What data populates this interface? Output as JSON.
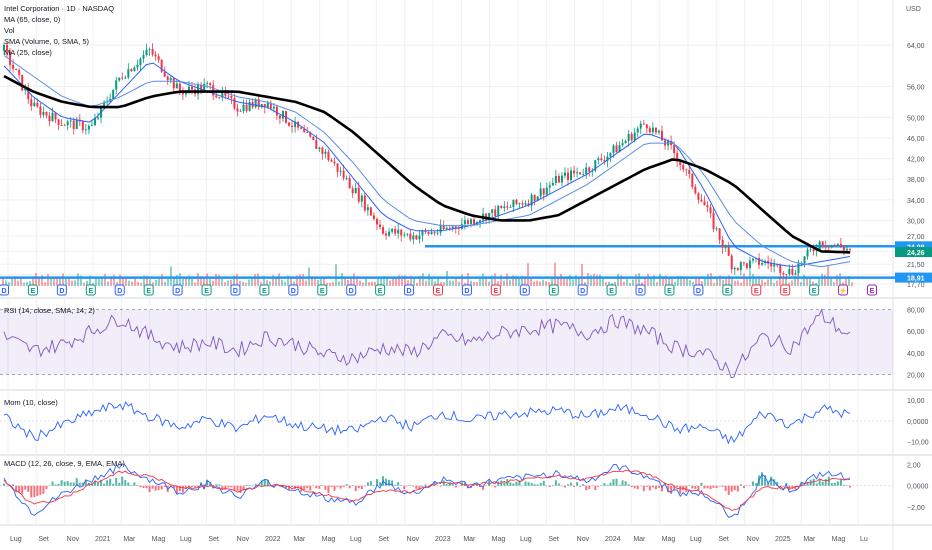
{
  "header": {
    "title": "Intel Corporation · 1D · NASDAQ",
    "currency": "USD"
  },
  "indicator_labels": {
    "ma": "MA (65, close, 0)",
    "vol": "Vol",
    "vol_sma": "SMA (Volume, 0, SMA, 5)",
    "ma2": "MA (25, close)"
  },
  "chart_data": [
    {
      "type": "line",
      "pane": "price",
      "ylim": [
        16.5,
        72
      ],
      "y_ticks": [
        "64,00",
        "56,00",
        "50,00",
        "46,00",
        "42,00",
        "38,00",
        "34,00",
        "30,00",
        "27,00",
        "24,00",
        "21,50",
        "19,50",
        "17,70"
      ],
      "price_labels": [
        {
          "value": "24,98",
          "color": "#2196f3"
        },
        {
          "value": "24,26",
          "color": "#089981"
        },
        {
          "value": "18,91",
          "color": "#2196f3"
        }
      ],
      "horizontal_levels": [
        24.98,
        18.91
      ],
      "x_labels": [
        "Lug",
        "Set",
        "Nov",
        "2021",
        "Mar",
        "Mag",
        "Lug",
        "Set",
        "Nov",
        "2022",
        "Mar",
        "Mag",
        "Lug",
        "Set",
        "Nov",
        "2023",
        "Mar",
        "Mag",
        "Lug",
        "Set",
        "Nov",
        "2024",
        "Mar",
        "Mag",
        "Lug",
        "Set",
        "Nov",
        "2025",
        "Mar",
        "Mag",
        "Lu"
      ],
      "x": [
        "2020-06-01",
        "2020-08-01",
        "2020-10-01",
        "2020-12-01",
        "2021-02-01",
        "2021-04-01",
        "2021-06-01",
        "2021-08-01",
        "2021-10-01",
        "2021-12-01",
        "2022-02-01",
        "2022-04-01",
        "2022-06-01",
        "2022-08-01",
        "2022-10-01",
        "2022-12-01",
        "2023-02-01",
        "2023-04-01",
        "2023-06-01",
        "2023-08-01",
        "2023-10-01",
        "2023-12-01",
        "2024-02-01",
        "2024-04-01",
        "2024-06-01",
        "2024-08-01",
        "2024-10-01",
        "2024-12-01",
        "2025-02-01",
        "2025-03-15"
      ],
      "series": [
        {
          "values": [
            63,
            52,
            49,
            48,
            58,
            63,
            55,
            56,
            52,
            53,
            48,
            43,
            36,
            28,
            27,
            28,
            30,
            32,
            34,
            38,
            40,
            44,
            49,
            43,
            33,
            21,
            22,
            20,
            26,
            24.3
          ],
          "color": "#131722"
        },
        {
          "values": [
            60,
            54,
            50,
            49,
            55,
            61,
            57,
            55,
            53,
            52,
            49,
            45,
            38,
            31,
            28,
            28,
            29,
            31,
            33,
            36,
            39,
            43,
            47,
            45,
            36,
            25,
            22,
            21,
            22,
            23
          ],
          "color": "#2962ff"
        },
        {
          "values": [
            62,
            58,
            54,
            52,
            54,
            57,
            57,
            56,
            54,
            53,
            51,
            47,
            41,
            34,
            30,
            29,
            29,
            30,
            31,
            34,
            37,
            41,
            45,
            45,
            39,
            30,
            25,
            22,
            21,
            22
          ],
          "color": "#2962ff"
        },
        {
          "values": [
            58,
            55,
            53,
            52,
            52,
            54,
            55,
            55,
            55,
            54,
            53,
            51,
            47,
            42,
            37,
            33,
            31,
            30,
            30,
            31,
            34,
            37,
            40,
            42,
            40,
            37,
            32,
            27,
            24,
            23.8
          ],
          "color": "#000000"
        }
      ]
    },
    {
      "type": "line",
      "pane": "rsi",
      "title": "RSI (14, close, SMA, 14, 2)",
      "ylim": [
        15,
        85
      ],
      "y_ticks": [
        "80,00",
        "60,00",
        "40,00",
        "20,00"
      ],
      "x": [
        "2020-06-01",
        "2020-08-01",
        "2020-10-01",
        "2020-12-01",
        "2021-02-01",
        "2021-04-01",
        "2021-06-01",
        "2021-08-01",
        "2021-10-01",
        "2021-12-01",
        "2022-02-01",
        "2022-04-01",
        "2022-06-01",
        "2022-08-01",
        "2022-10-01",
        "2022-12-01",
        "2023-02-01",
        "2023-04-01",
        "2023-06-01",
        "2023-08-01",
        "2023-10-01",
        "2023-12-01",
        "2024-02-01",
        "2024-04-01",
        "2024-06-01",
        "2024-08-01",
        "2024-10-01",
        "2024-12-01",
        "2025-02-01",
        "2025-03-15"
      ],
      "series": [
        {
          "values": [
            55,
            42,
            48,
            60,
            72,
            55,
            45,
            50,
            42,
            55,
            48,
            38,
            35,
            45,
            40,
            55,
            50,
            58,
            62,
            65,
            58,
            70,
            60,
            45,
            40,
            22,
            55,
            45,
            75,
            55
          ],
          "color": "#7e57c2"
        }
      ]
    },
    {
      "type": "line",
      "pane": "momentum",
      "title": "Mom (10, close)",
      "ylim": [
        -14,
        12
      ],
      "y_ticks": [
        "10,00",
        "0,0000",
        "−10,00"
      ],
      "x": [
        "2020-06-01",
        "2020-08-01",
        "2020-10-01",
        "2020-12-01",
        "2021-02-01",
        "2021-04-01",
        "2021-06-01",
        "2021-08-01",
        "2021-10-01",
        "2021-12-01",
        "2022-02-01",
        "2022-04-01",
        "2022-06-01",
        "2022-08-01",
        "2022-10-01",
        "2022-12-01",
        "2023-02-01",
        "2023-04-01",
        "2023-06-01",
        "2023-08-01",
        "2023-10-01",
        "2023-12-01",
        "2024-02-01",
        "2024-04-01",
        "2024-06-01",
        "2024-08-01",
        "2024-10-01",
        "2024-12-01",
        "2025-02-01",
        "2025-03-15"
      ],
      "series": [
        {
          "values": [
            2,
            -8,
            -2,
            4,
            8,
            2,
            -3,
            1,
            -4,
            3,
            -2,
            -4,
            -5,
            2,
            -3,
            4,
            0,
            3,
            4,
            5,
            2,
            6,
            4,
            -4,
            -3,
            -10,
            4,
            -2,
            6,
            3
          ],
          "color": "#2962ff"
        }
      ]
    },
    {
      "type": "bar",
      "pane": "macd",
      "title": "MACD (12, 26, close, 9, EMA, EMA)",
      "ylim": [
        -3.4,
        2.6
      ],
      "y_ticks": [
        "2,00",
        "0,0000",
        "−2,00"
      ],
      "x": [
        "2020-06-01",
        "2020-08-01",
        "2020-10-01",
        "2020-12-01",
        "2021-02-01",
        "2021-04-01",
        "2021-06-01",
        "2021-08-01",
        "2021-10-01",
        "2021-12-01",
        "2022-02-01",
        "2022-04-01",
        "2022-06-01",
        "2022-08-01",
        "2022-10-01",
        "2022-12-01",
        "2023-02-01",
        "2023-04-01",
        "2023-06-01",
        "2023-08-01",
        "2023-10-01",
        "2023-12-01",
        "2024-02-01",
        "2024-04-01",
        "2024-06-01",
        "2024-08-01",
        "2024-10-01",
        "2024-12-01",
        "2025-02-01",
        "2025-03-15"
      ],
      "series": [
        {
          "values": [
            0.6,
            -2.6,
            -0.8,
            0.6,
            1.8,
            0.6,
            -0.6,
            0.2,
            -1.0,
            0.4,
            -0.4,
            -1.2,
            -1.6,
            0.2,
            -0.8,
            0.6,
            0.0,
            0.5,
            0.8,
            1.2,
            0.4,
            1.8,
            1.0,
            -0.6,
            -0.8,
            -3.0,
            0.8,
            -0.4,
            1.1,
            0.8
          ],
          "color": "#2962ff"
        },
        {
          "values": [
            0.4,
            -1.8,
            -1.2,
            0.2,
            1.3,
            0.9,
            -0.2,
            0.0,
            -0.6,
            0.1,
            -0.2,
            -0.8,
            -1.4,
            -0.4,
            -0.6,
            0.3,
            0.1,
            0.3,
            0.6,
            0.9,
            0.6,
            1.4,
            1.2,
            -0.1,
            -0.7,
            -2.4,
            -0.2,
            -0.2,
            0.6,
            0.7
          ],
          "color": "#f23645"
        }
      ]
    }
  ],
  "event_markers": [
    {
      "label": "D",
      "color": "#2962ff"
    },
    {
      "label": "E",
      "color": "#089981"
    },
    {
      "label": "D",
      "color": "#2962ff"
    },
    {
      "label": "E",
      "color": "#089981"
    },
    {
      "label": "D",
      "color": "#2962ff"
    },
    {
      "label": "E",
      "color": "#089981"
    },
    {
      "label": "D",
      "color": "#2962ff"
    },
    {
      "label": "E",
      "color": "#089981"
    },
    {
      "label": "D",
      "color": "#2962ff"
    },
    {
      "label": "E",
      "color": "#089981"
    },
    {
      "label": "D",
      "color": "#2962ff"
    },
    {
      "label": "E",
      "color": "#089981"
    },
    {
      "label": "D",
      "color": "#2962ff"
    },
    {
      "label": "E",
      "color": "#089981"
    },
    {
      "label": "D",
      "color": "#2962ff"
    },
    {
      "label": "E",
      "color": "#f23645"
    },
    {
      "label": "D",
      "color": "#2962ff"
    },
    {
      "label": "E",
      "color": "#f23645"
    },
    {
      "label": "D",
      "color": "#2962ff"
    },
    {
      "label": "E",
      "color": "#089981"
    },
    {
      "label": "D",
      "color": "#2962ff"
    },
    {
      "label": "E",
      "color": "#089981"
    },
    {
      "label": "D",
      "color": "#2962ff"
    },
    {
      "label": "E",
      "color": "#089981"
    },
    {
      "label": "D",
      "color": "#2962ff"
    },
    {
      "label": "E",
      "color": "#089981"
    },
    {
      "label": "E",
      "color": "#f23645"
    },
    {
      "label": "E",
      "color": "#f23645"
    },
    {
      "label": "E",
      "color": "#089981"
    },
    {
      "label": "⚡",
      "color": "#9c27b0"
    },
    {
      "label": "E",
      "color": "#9c27b0"
    }
  ],
  "colors": {
    "grid": "#eef0f4",
    "bull": "#089981",
    "bear": "#f23645",
    "rsi_band": "#7e57c2"
  }
}
